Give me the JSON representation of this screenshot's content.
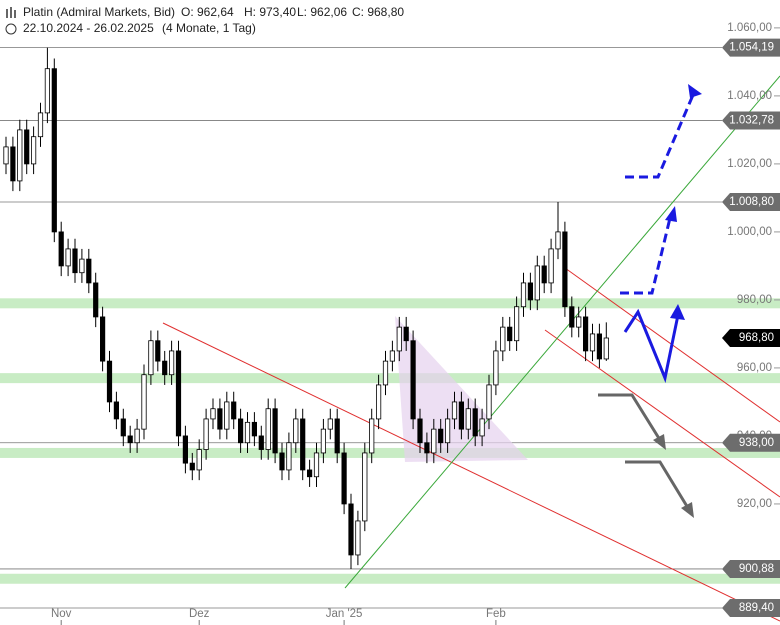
{
  "chart_data": {
    "type": "candlestick",
    "title": "Platin (Admiral Markets, Bid)",
    "ohlc_text": [
      "O: 962,64",
      "H: 973,40",
      "L: 962,06",
      "C: 968,80"
    ],
    "date_range": "22.10.2024 - 26.02.2025",
    "period": "(4 Monate, 1 Tag)",
    "categories": [
      null,
      null,
      null,
      null,
      null,
      null,
      null,
      null,
      "Nov",
      null,
      null,
      null,
      null,
      null,
      null,
      null,
      null,
      null,
      null,
      null,
      null,
      null,
      null,
      null,
      null,
      null,
      null,
      null,
      "Dez",
      null,
      null,
      null,
      null,
      null,
      null,
      null,
      null,
      null,
      null,
      null,
      null,
      null,
      null,
      null,
      null,
      null,
      null,
      null,
      null,
      "Jan '25",
      null,
      null,
      null,
      null,
      null,
      null,
      null,
      null,
      null,
      null,
      null,
      null,
      null,
      null,
      null,
      null,
      null,
      null,
      null,
      null,
      null,
      "Feb",
      null,
      null,
      null,
      null,
      null,
      null,
      null,
      null,
      null,
      null,
      null,
      null,
      null,
      null,
      null,
      null
    ],
    "open": [
      1020,
      1025,
      1015,
      1030,
      1020,
      1028,
      1035,
      1048,
      1000,
      990,
      995,
      988,
      992,
      985,
      975,
      962,
      950,
      945,
      940,
      938,
      942,
      958,
      968,
      962,
      958,
      965,
      940,
      932,
      930,
      936,
      945,
      948,
      942,
      950,
      945,
      938,
      944,
      940,
      936,
      948,
      935,
      930,
      938,
      945,
      930,
      928,
      935,
      942,
      945,
      935,
      920,
      905,
      915,
      935,
      945,
      955,
      962,
      965,
      972,
      968,
      945,
      938,
      935,
      942,
      938,
      945,
      950,
      942,
      948,
      940,
      945,
      955,
      965,
      972,
      968,
      978,
      985,
      980,
      990,
      985,
      995,
      1000,
      978,
      972,
      975,
      965,
      970,
      962.64
    ],
    "high": [
      1028,
      1028,
      1033,
      1033,
      1031,
      1038,
      1054.19,
      1051,
      1003,
      998,
      998,
      995,
      995,
      988,
      978,
      965,
      953,
      948,
      943,
      945,
      961,
      971,
      971,
      965,
      968,
      968,
      943,
      935,
      939,
      948,
      951,
      951,
      953,
      953,
      948,
      947,
      947,
      943,
      951,
      951,
      938,
      941,
      948,
      948,
      933,
      938,
      945,
      948,
      948,
      938,
      923,
      918,
      938,
      948,
      958,
      965,
      968,
      975,
      975,
      971,
      948,
      941,
      945,
      945,
      948,
      953,
      953,
      951,
      951,
      948,
      958,
      968,
      975,
      975,
      981,
      988,
      988,
      993,
      993,
      998,
      1008.8,
      1003,
      981,
      978,
      978,
      973,
      973,
      973.4
    ],
    "low": [
      1017,
      1012,
      1012,
      1017,
      1017,
      1025,
      1032,
      997,
      987,
      987,
      985,
      985,
      982,
      972,
      959,
      947,
      942,
      937,
      935,
      935,
      939,
      955,
      959,
      955,
      955,
      937,
      929,
      927,
      927,
      933,
      942,
      939,
      939,
      942,
      935,
      935,
      937,
      933,
      933,
      932,
      927,
      927,
      935,
      927,
      925,
      925,
      932,
      939,
      932,
      917,
      900.88,
      902,
      912,
      932,
      942,
      952,
      959,
      962,
      965,
      942,
      935,
      932,
      932,
      935,
      935,
      942,
      939,
      939,
      937,
      937,
      942,
      952,
      962,
      965,
      965,
      975,
      977,
      977,
      982,
      982,
      992,
      975,
      969,
      969,
      962,
      962,
      960,
      962.06
    ],
    "close": [
      1025,
      1015,
      1030,
      1020,
      1028,
      1035,
      1048,
      1000,
      990,
      995,
      988,
      992,
      985,
      975,
      962,
      950,
      945,
      940,
      938,
      942,
      958,
      968,
      962,
      958,
      965,
      940,
      932,
      930,
      936,
      945,
      948,
      942,
      950,
      945,
      938,
      944,
      940,
      936,
      948,
      935,
      930,
      938,
      945,
      930,
      928,
      935,
      942,
      945,
      935,
      920,
      905,
      915,
      935,
      945,
      955,
      962,
      965,
      972,
      968,
      945,
      938,
      935,
      942,
      938,
      945,
      950,
      942,
      948,
      940,
      945,
      955,
      965,
      972,
      968,
      978,
      985,
      980,
      990,
      985,
      995,
      1000,
      978,
      972,
      975,
      965,
      970,
      962.64,
      968.8
    ],
    "ylim": [
      884.4,
      1068.2
    ],
    "yticks": [
      {
        "value": 920,
        "label": "920,00"
      },
      {
        "value": 940,
        "label": "940,00"
      },
      {
        "value": 960,
        "label": "960,00"
      },
      {
        "value": 980,
        "label": "980,00"
      },
      {
        "value": 1000,
        "label": "1.000,00"
      },
      {
        "value": 1020,
        "label": "1.020,00"
      },
      {
        "value": 1040,
        "label": "1.040,00"
      },
      {
        "value": 1060,
        "label": "1.060,00"
      }
    ],
    "levels": [
      {
        "value": 1054.19,
        "label": "1.054,19"
      },
      {
        "value": 1032.78,
        "label": "1.032,78"
      },
      {
        "value": 1008.8,
        "label": "1.008,80"
      },
      {
        "value": 968.8,
        "label": "968,80"
      },
      {
        "value": 938,
        "label": "938,00"
      },
      {
        "value": 900.88,
        "label": "900,88"
      },
      {
        "value": 889.4,
        "label": "889,40"
      }
    ],
    "zones": [
      979,
      957,
      935,
      898
    ],
    "up_color": "#ffffff",
    "down_color": "#000000",
    "zone_color": "#c8ecc4",
    "level_color": "#6d6d6d",
    "current_color": "#000000"
  }
}
